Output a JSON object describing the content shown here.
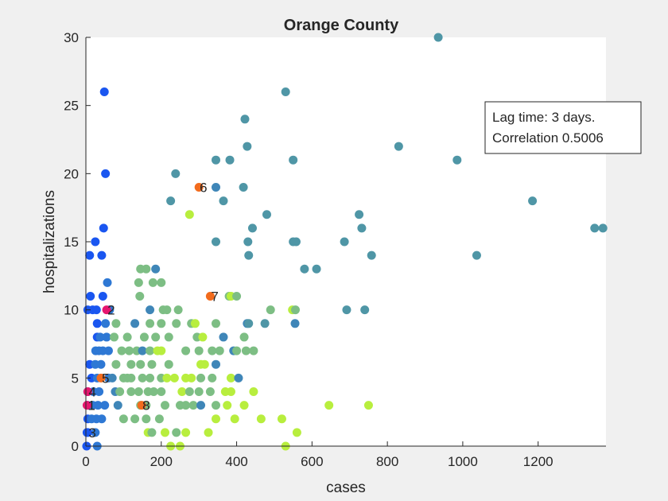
{
  "chart_data": {
    "type": "scatter",
    "title": "Orange County",
    "xlabel": "cases",
    "ylabel": "hospitalizations",
    "xlim": [
      0,
      1380
    ],
    "ylim": [
      0,
      30
    ],
    "xticks": [
      0,
      200,
      400,
      600,
      800,
      1000,
      1200
    ],
    "yticks": [
      0,
      5,
      10,
      15,
      20,
      25,
      30
    ],
    "grid": false,
    "annotation": {
      "line1": "Lag time: 3 days.",
      "line2": "Correlation 0.5006",
      "placement": "top-right"
    },
    "colors": {
      "early": "#1a56f0",
      "blue": "#2e78d4",
      "steel": "#3f86b8",
      "teal": "#4f96a6",
      "sage": "#7dbe84",
      "lime": "#b8ee3e",
      "orange": "#f26b1d",
      "magenta": "#e6166f"
    },
    "points": [
      {
        "x": 49,
        "y": 26,
        "c": "early"
      },
      {
        "x": 52,
        "y": 20,
        "c": "early"
      },
      {
        "x": 47,
        "y": 16,
        "c": "early"
      },
      {
        "x": 25,
        "y": 15,
        "c": "early"
      },
      {
        "x": 10,
        "y": 14,
        "c": "early"
      },
      {
        "x": 42,
        "y": 14,
        "c": "early"
      },
      {
        "x": 57,
        "y": 12,
        "c": "blue"
      },
      {
        "x": 12,
        "y": 11,
        "c": "early"
      },
      {
        "x": 45,
        "y": 11,
        "c": "early"
      },
      {
        "x": 5,
        "y": 10,
        "c": "early"
      },
      {
        "x": 28,
        "y": 10,
        "c": "early"
      },
      {
        "x": 18,
        "y": 10,
        "c": "early"
      },
      {
        "x": 63,
        "y": 10,
        "c": "blue"
      },
      {
        "x": 30,
        "y": 9,
        "c": "early"
      },
      {
        "x": 52,
        "y": 9,
        "c": "blue"
      },
      {
        "x": 30,
        "y": 8,
        "c": "early"
      },
      {
        "x": 38,
        "y": 8,
        "c": "blue"
      },
      {
        "x": 55,
        "y": 8,
        "c": "blue"
      },
      {
        "x": 26,
        "y": 7,
        "c": "blue"
      },
      {
        "x": 35,
        "y": 7,
        "c": "blue"
      },
      {
        "x": 45,
        "y": 7,
        "c": "blue"
      },
      {
        "x": 60,
        "y": 7,
        "c": "blue"
      },
      {
        "x": 10,
        "y": 6,
        "c": "early"
      },
      {
        "x": 25,
        "y": 6,
        "c": "blue"
      },
      {
        "x": 40,
        "y": 6,
        "c": "blue"
      },
      {
        "x": 15,
        "y": 5,
        "c": "early"
      },
      {
        "x": 30,
        "y": 5,
        "c": "blue"
      },
      {
        "x": 60,
        "y": 5,
        "c": "blue"
      },
      {
        "x": 5,
        "y": 4,
        "c": "early"
      },
      {
        "x": 20,
        "y": 4,
        "c": "blue"
      },
      {
        "x": 35,
        "y": 4,
        "c": "blue"
      },
      {
        "x": 4,
        "y": 3,
        "c": "early"
      },
      {
        "x": 18,
        "y": 3,
        "c": "blue"
      },
      {
        "x": 32,
        "y": 3,
        "c": "blue"
      },
      {
        "x": 50,
        "y": 3,
        "c": "blue"
      },
      {
        "x": 5,
        "y": 2,
        "c": "early"
      },
      {
        "x": 15,
        "y": 2,
        "c": "blue"
      },
      {
        "x": 28,
        "y": 2,
        "c": "blue"
      },
      {
        "x": 42,
        "y": 2,
        "c": "blue"
      },
      {
        "x": 3,
        "y": 1,
        "c": "early"
      },
      {
        "x": 25,
        "y": 1,
        "c": "blue"
      },
      {
        "x": 2,
        "y": 0,
        "c": "early"
      },
      {
        "x": 30,
        "y": 0,
        "c": "blue"
      },
      {
        "x": 935,
        "y": 30,
        "c": "teal"
      },
      {
        "x": 530,
        "y": 26,
        "c": "teal"
      },
      {
        "x": 422,
        "y": 24,
        "c": "teal"
      },
      {
        "x": 428,
        "y": 22,
        "c": "teal"
      },
      {
        "x": 830,
        "y": 22,
        "c": "teal"
      },
      {
        "x": 345,
        "y": 21,
        "c": "teal"
      },
      {
        "x": 382,
        "y": 21,
        "c": "teal"
      },
      {
        "x": 550,
        "y": 21,
        "c": "teal"
      },
      {
        "x": 985,
        "y": 21,
        "c": "teal"
      },
      {
        "x": 238,
        "y": 20,
        "c": "teal"
      },
      {
        "x": 345,
        "y": 19,
        "c": "steel"
      },
      {
        "x": 418,
        "y": 19,
        "c": "teal"
      },
      {
        "x": 225,
        "y": 18,
        "c": "teal"
      },
      {
        "x": 365,
        "y": 18,
        "c": "teal"
      },
      {
        "x": 1185,
        "y": 18,
        "c": "teal"
      },
      {
        "x": 275,
        "y": 17,
        "c": "lime"
      },
      {
        "x": 480,
        "y": 17,
        "c": "teal"
      },
      {
        "x": 725,
        "y": 17,
        "c": "teal"
      },
      {
        "x": 442,
        "y": 16,
        "c": "teal"
      },
      {
        "x": 732,
        "y": 16,
        "c": "teal"
      },
      {
        "x": 1350,
        "y": 16,
        "c": "teal"
      },
      {
        "x": 1372,
        "y": 16,
        "c": "teal"
      },
      {
        "x": 345,
        "y": 15,
        "c": "teal"
      },
      {
        "x": 430,
        "y": 15,
        "c": "teal"
      },
      {
        "x": 550,
        "y": 15,
        "c": "teal"
      },
      {
        "x": 558,
        "y": 15,
        "c": "teal"
      },
      {
        "x": 686,
        "y": 15,
        "c": "teal"
      },
      {
        "x": 432,
        "y": 14,
        "c": "teal"
      },
      {
        "x": 758,
        "y": 14,
        "c": "teal"
      },
      {
        "x": 1037,
        "y": 14,
        "c": "teal"
      },
      {
        "x": 145,
        "y": 13,
        "c": "sage"
      },
      {
        "x": 160,
        "y": 13,
        "c": "sage"
      },
      {
        "x": 185,
        "y": 13,
        "c": "steel"
      },
      {
        "x": 580,
        "y": 13,
        "c": "teal"
      },
      {
        "x": 612,
        "y": 13,
        "c": "teal"
      },
      {
        "x": 140,
        "y": 12,
        "c": "sage"
      },
      {
        "x": 178,
        "y": 12,
        "c": "sage"
      },
      {
        "x": 200,
        "y": 12,
        "c": "sage"
      },
      {
        "x": 143,
        "y": 11,
        "c": "sage"
      },
      {
        "x": 380,
        "y": 11,
        "c": "sage"
      },
      {
        "x": 385,
        "y": 11,
        "c": "lime"
      },
      {
        "x": 400,
        "y": 11,
        "c": "sage"
      },
      {
        "x": 170,
        "y": 10,
        "c": "steel"
      },
      {
        "x": 205,
        "y": 10,
        "c": "sage"
      },
      {
        "x": 215,
        "y": 10,
        "c": "sage"
      },
      {
        "x": 245,
        "y": 10,
        "c": "sage"
      },
      {
        "x": 490,
        "y": 10,
        "c": "sage"
      },
      {
        "x": 548,
        "y": 10,
        "c": "lime"
      },
      {
        "x": 556,
        "y": 10,
        "c": "sage"
      },
      {
        "x": 692,
        "y": 10,
        "c": "teal"
      },
      {
        "x": 740,
        "y": 10,
        "c": "teal"
      },
      {
        "x": 80,
        "y": 9,
        "c": "sage"
      },
      {
        "x": 130,
        "y": 9,
        "c": "steel"
      },
      {
        "x": 170,
        "y": 9,
        "c": "sage"
      },
      {
        "x": 200,
        "y": 9,
        "c": "sage"
      },
      {
        "x": 240,
        "y": 9,
        "c": "sage"
      },
      {
        "x": 280,
        "y": 9,
        "c": "sage"
      },
      {
        "x": 290,
        "y": 9,
        "c": "lime"
      },
      {
        "x": 345,
        "y": 9,
        "c": "sage"
      },
      {
        "x": 428,
        "y": 9,
        "c": "steel"
      },
      {
        "x": 432,
        "y": 9,
        "c": "teal"
      },
      {
        "x": 475,
        "y": 9,
        "c": "teal"
      },
      {
        "x": 555,
        "y": 9,
        "c": "steel"
      },
      {
        "x": 75,
        "y": 8,
        "c": "sage"
      },
      {
        "x": 110,
        "y": 8,
        "c": "sage"
      },
      {
        "x": 155,
        "y": 8,
        "c": "sage"
      },
      {
        "x": 185,
        "y": 8,
        "c": "sage"
      },
      {
        "x": 220,
        "y": 8,
        "c": "sage"
      },
      {
        "x": 295,
        "y": 8,
        "c": "sage"
      },
      {
        "x": 310,
        "y": 8,
        "c": "lime"
      },
      {
        "x": 365,
        "y": 8,
        "c": "steel"
      },
      {
        "x": 420,
        "y": 8,
        "c": "sage"
      },
      {
        "x": 95,
        "y": 7,
        "c": "sage"
      },
      {
        "x": 115,
        "y": 7,
        "c": "sage"
      },
      {
        "x": 135,
        "y": 7,
        "c": "sage"
      },
      {
        "x": 150,
        "y": 7,
        "c": "steel"
      },
      {
        "x": 170,
        "y": 7,
        "c": "sage"
      },
      {
        "x": 190,
        "y": 7,
        "c": "lime"
      },
      {
        "x": 200,
        "y": 7,
        "c": "lime"
      },
      {
        "x": 265,
        "y": 7,
        "c": "sage"
      },
      {
        "x": 300,
        "y": 7,
        "c": "sage"
      },
      {
        "x": 335,
        "y": 7,
        "c": "sage"
      },
      {
        "x": 355,
        "y": 7,
        "c": "sage"
      },
      {
        "x": 392,
        "y": 7,
        "c": "steel"
      },
      {
        "x": 400,
        "y": 7,
        "c": "sage"
      },
      {
        "x": 425,
        "y": 7,
        "c": "sage"
      },
      {
        "x": 445,
        "y": 7,
        "c": "sage"
      },
      {
        "x": 80,
        "y": 6,
        "c": "sage"
      },
      {
        "x": 120,
        "y": 6,
        "c": "sage"
      },
      {
        "x": 145,
        "y": 6,
        "c": "sage"
      },
      {
        "x": 175,
        "y": 6,
        "c": "sage"
      },
      {
        "x": 220,
        "y": 6,
        "c": "sage"
      },
      {
        "x": 305,
        "y": 6,
        "c": "lime"
      },
      {
        "x": 315,
        "y": 6,
        "c": "lime"
      },
      {
        "x": 345,
        "y": 6,
        "c": "steel"
      },
      {
        "x": 70,
        "y": 5,
        "c": "steel"
      },
      {
        "x": 100,
        "y": 5,
        "c": "sage"
      },
      {
        "x": 110,
        "y": 5,
        "c": "sage"
      },
      {
        "x": 120,
        "y": 5,
        "c": "sage"
      },
      {
        "x": 150,
        "y": 5,
        "c": "sage"
      },
      {
        "x": 170,
        "y": 5,
        "c": "sage"
      },
      {
        "x": 200,
        "y": 5,
        "c": "sage"
      },
      {
        "x": 215,
        "y": 5,
        "c": "lime"
      },
      {
        "x": 235,
        "y": 5,
        "c": "lime"
      },
      {
        "x": 265,
        "y": 5,
        "c": "lime"
      },
      {
        "x": 280,
        "y": 5,
        "c": "lime"
      },
      {
        "x": 305,
        "y": 5,
        "c": "sage"
      },
      {
        "x": 335,
        "y": 5,
        "c": "sage"
      },
      {
        "x": 385,
        "y": 5,
        "c": "lime"
      },
      {
        "x": 405,
        "y": 5,
        "c": "steel"
      },
      {
        "x": 78,
        "y": 4,
        "c": "steel"
      },
      {
        "x": 90,
        "y": 4,
        "c": "sage"
      },
      {
        "x": 120,
        "y": 4,
        "c": "sage"
      },
      {
        "x": 140,
        "y": 4,
        "c": "sage"
      },
      {
        "x": 165,
        "y": 4,
        "c": "sage"
      },
      {
        "x": 180,
        "y": 4,
        "c": "sage"
      },
      {
        "x": 200,
        "y": 4,
        "c": "sage"
      },
      {
        "x": 255,
        "y": 4,
        "c": "lime"
      },
      {
        "x": 275,
        "y": 4,
        "c": "sage"
      },
      {
        "x": 300,
        "y": 4,
        "c": "sage"
      },
      {
        "x": 330,
        "y": 4,
        "c": "sage"
      },
      {
        "x": 370,
        "y": 4,
        "c": "lime"
      },
      {
        "x": 385,
        "y": 4,
        "c": "lime"
      },
      {
        "x": 445,
        "y": 4,
        "c": "lime"
      },
      {
        "x": 85,
        "y": 3,
        "c": "steel"
      },
      {
        "x": 145,
        "y": 3,
        "c": "sage"
      },
      {
        "x": 160,
        "y": 3,
        "c": "sage"
      },
      {
        "x": 210,
        "y": 3,
        "c": "sage"
      },
      {
        "x": 250,
        "y": 3,
        "c": "sage"
      },
      {
        "x": 265,
        "y": 3,
        "c": "sage"
      },
      {
        "x": 285,
        "y": 3,
        "c": "sage"
      },
      {
        "x": 305,
        "y": 3,
        "c": "steel"
      },
      {
        "x": 345,
        "y": 3,
        "c": "sage"
      },
      {
        "x": 375,
        "y": 3,
        "c": "lime"
      },
      {
        "x": 420,
        "y": 3,
        "c": "lime"
      },
      {
        "x": 645,
        "y": 3,
        "c": "lime"
      },
      {
        "x": 750,
        "y": 3,
        "c": "lime"
      },
      {
        "x": 100,
        "y": 2,
        "c": "sage"
      },
      {
        "x": 130,
        "y": 2,
        "c": "sage"
      },
      {
        "x": 160,
        "y": 2,
        "c": "sage"
      },
      {
        "x": 195,
        "y": 2,
        "c": "sage"
      },
      {
        "x": 345,
        "y": 2,
        "c": "lime"
      },
      {
        "x": 395,
        "y": 2,
        "c": "lime"
      },
      {
        "x": 465,
        "y": 2,
        "c": "lime"
      },
      {
        "x": 520,
        "y": 2,
        "c": "lime"
      },
      {
        "x": 165,
        "y": 1,
        "c": "lime"
      },
      {
        "x": 175,
        "y": 1,
        "c": "sage"
      },
      {
        "x": 210,
        "y": 1,
        "c": "lime"
      },
      {
        "x": 240,
        "y": 1,
        "c": "sage"
      },
      {
        "x": 265,
        "y": 1,
        "c": "lime"
      },
      {
        "x": 325,
        "y": 1,
        "c": "lime"
      },
      {
        "x": 560,
        "y": 1,
        "c": "lime"
      },
      {
        "x": 225,
        "y": 0,
        "c": "lime"
      },
      {
        "x": 250,
        "y": 0,
        "c": "lime"
      },
      {
        "x": 530,
        "y": 0,
        "c": "lime"
      }
    ],
    "labeled_points": [
      {
        "label": "1",
        "x": 3,
        "y": 3,
        "c": "magenta"
      },
      {
        "label": "2",
        "x": 55,
        "y": 10,
        "c": "magenta"
      },
      {
        "label": "3",
        "x": 5,
        "y": 1,
        "c": "early"
      },
      {
        "label": "4",
        "x": 5,
        "y": 4,
        "c": "magenta"
      },
      {
        "label": "5",
        "x": 40,
        "y": 5,
        "c": "orange"
      },
      {
        "label": "6",
        "x": 300,
        "y": 19,
        "c": "orange"
      },
      {
        "label": "7",
        "x": 330,
        "y": 11,
        "c": "orange"
      },
      {
        "label": "8",
        "x": 148,
        "y": 3,
        "c": "orange"
      }
    ]
  }
}
